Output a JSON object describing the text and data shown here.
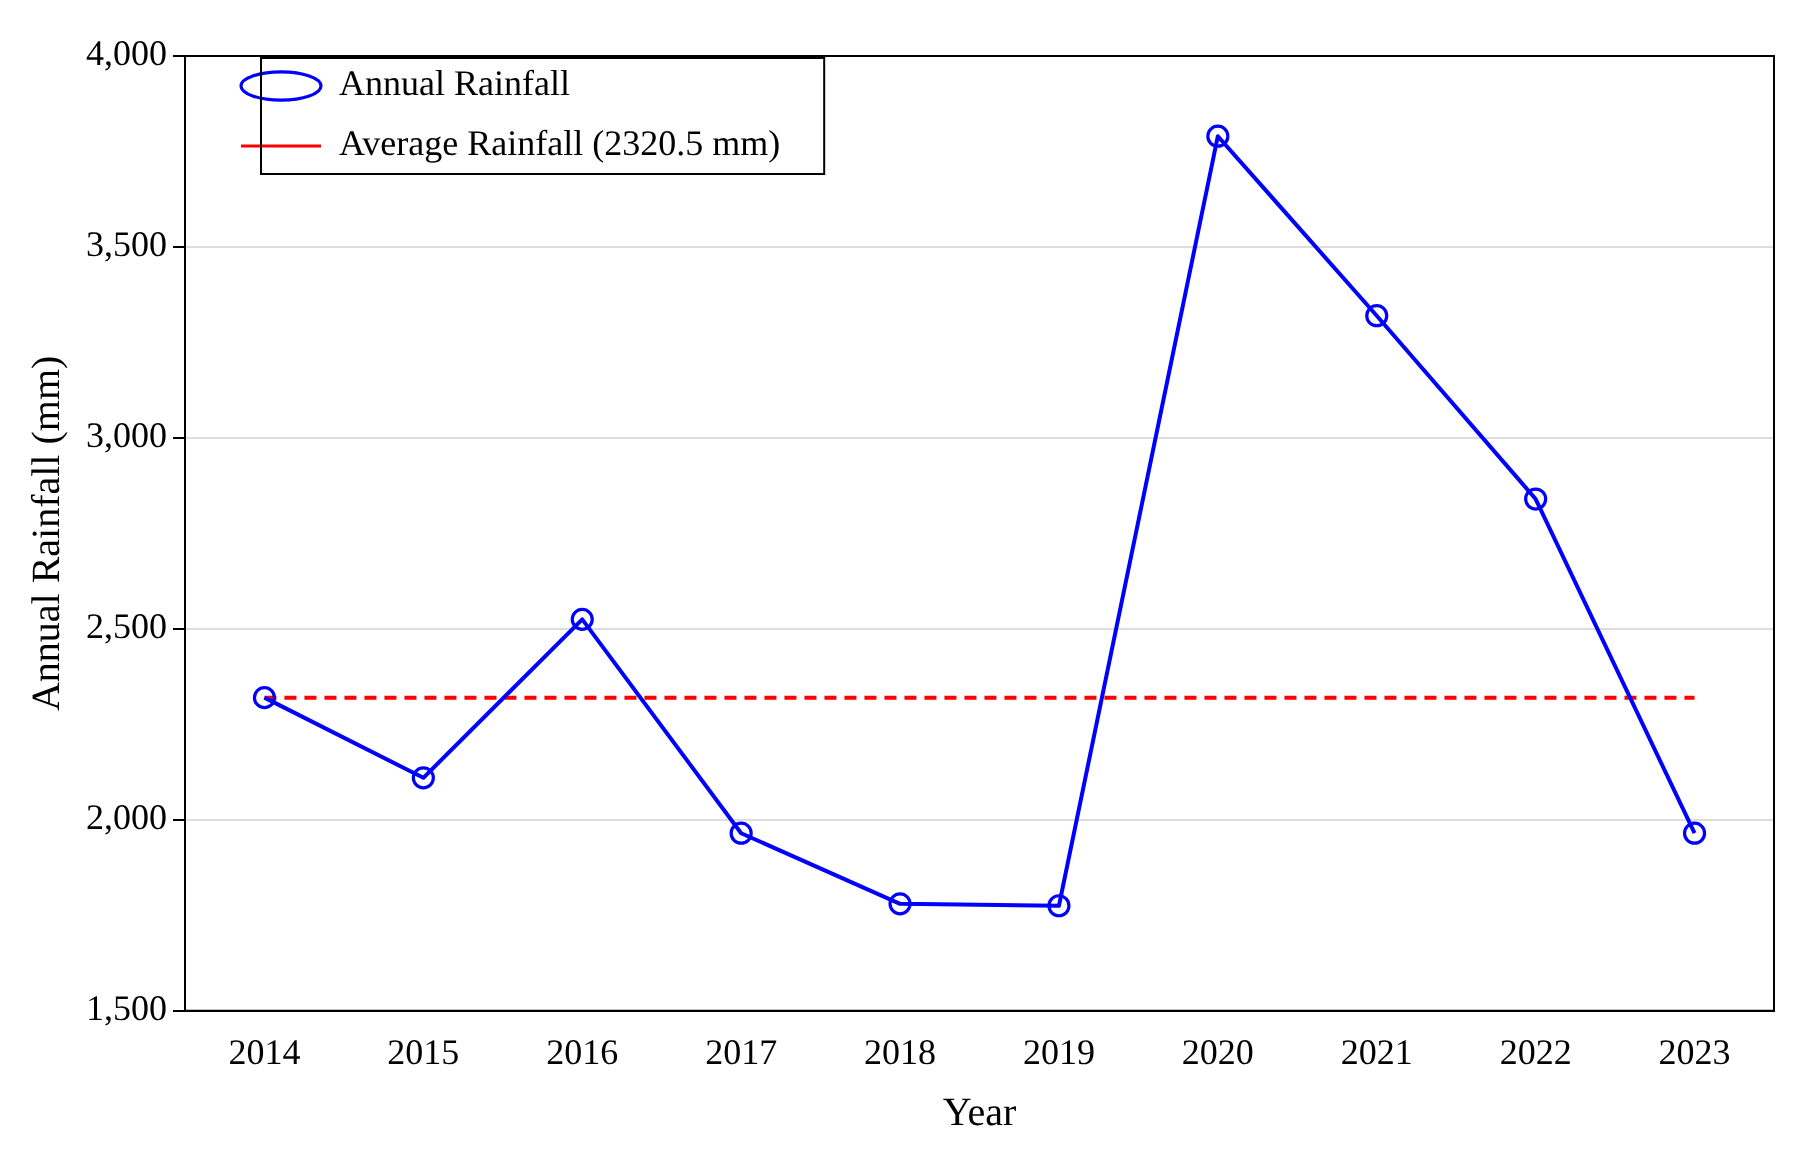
{
  "chart_data": {
    "type": "line",
    "xlabel": "Year",
    "ylabel": "Annual Rainfall (mm)",
    "categories": [
      "2014",
      "2015",
      "2016",
      "2017",
      "2018",
      "2019",
      "2020",
      "2021",
      "2022",
      "2023"
    ],
    "series": [
      {
        "name": "Annual Rainfall",
        "color": "#0000ff",
        "marker": "circle",
        "line_style": "solid",
        "values": [
          2320,
          2110,
          2525,
          1965,
          1780,
          1775,
          3790,
          3320,
          2840,
          1965
        ]
      },
      {
        "name": "Average Rainfall (2320.5 mm)",
        "color": "#ff0000",
        "marker": "none",
        "line_style": "dashed",
        "values": [
          2320,
          2320,
          2320,
          2320,
          2320,
          2320,
          2320,
          2320,
          2320,
          2320
        ]
      }
    ],
    "ylim": [
      1500,
      4000
    ],
    "yticks": [
      {
        "value": 1500,
        "label": "1,500"
      },
      {
        "value": 2000,
        "label": "2,000"
      },
      {
        "value": 2500,
        "label": "2,500"
      },
      {
        "value": 3000,
        "label": "3,000"
      },
      {
        "value": 3500,
        "label": "3,500"
      },
      {
        "value": 4000,
        "label": "4,000"
      }
    ],
    "grid": "y",
    "legend": "top left"
  }
}
